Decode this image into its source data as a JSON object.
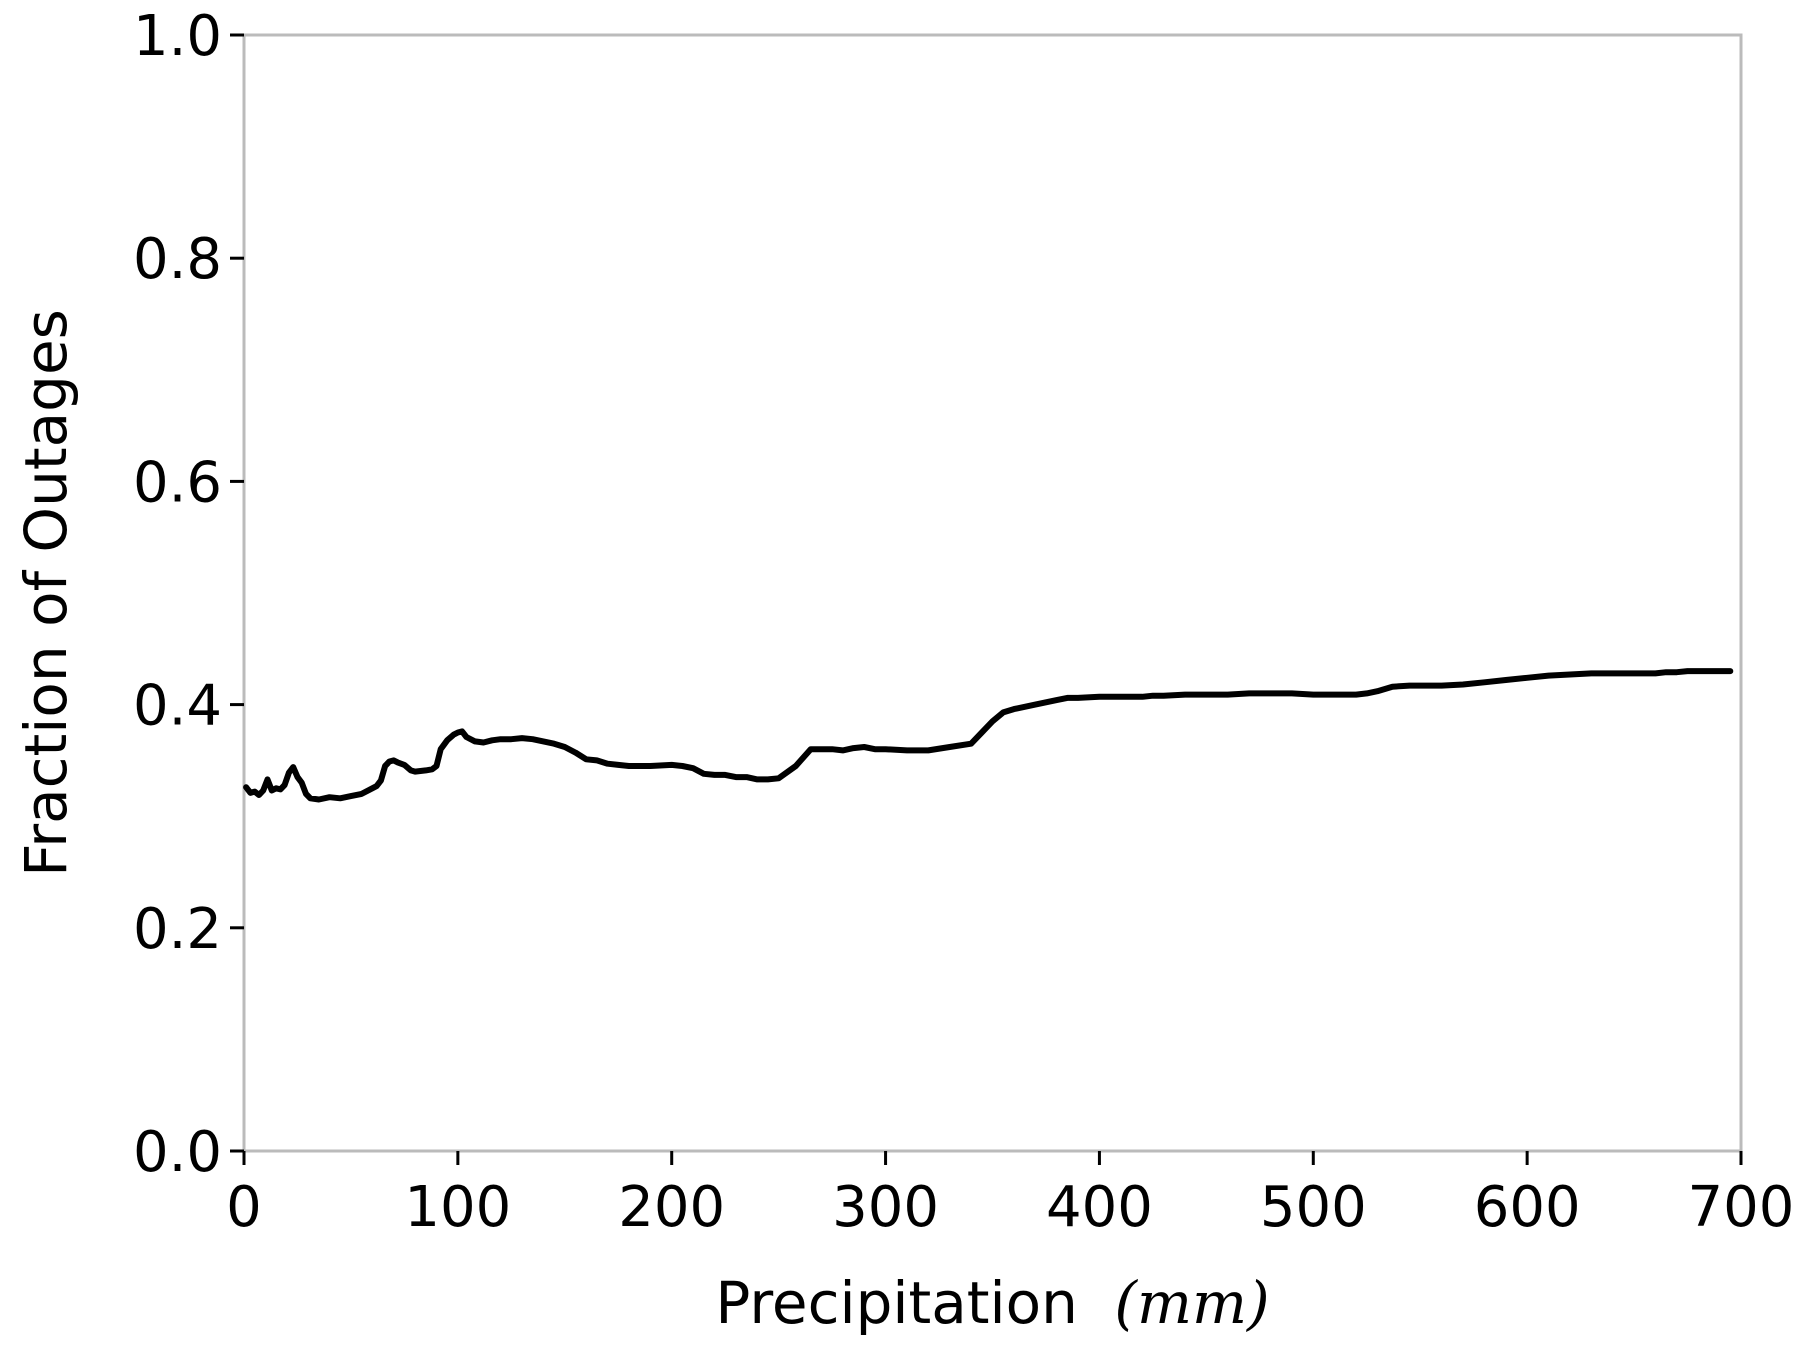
{
  "chart_data": {
    "type": "line",
    "title": "",
    "xlabel": "Precipitation",
    "xlabel_unit": "(mm)",
    "ylabel": "Fraction of Outages",
    "xlim": [
      0,
      700
    ],
    "ylim": [
      0.0,
      1.0
    ],
    "xticks": [
      0,
      100,
      200,
      300,
      400,
      500,
      600,
      700
    ],
    "xtick_labels": [
      "0",
      "100",
      "200",
      "300",
      "400",
      "500",
      "600",
      "700"
    ],
    "yticks": [
      0.0,
      0.2,
      0.4,
      0.6,
      0.8,
      1.0
    ],
    "ytick_labels": [
      "0.0",
      "0.2",
      "0.4",
      "0.6",
      "0.8",
      "1.0"
    ],
    "grid": false,
    "line_color": "#000000",
    "frame_color": "#bbbbbb",
    "series": [
      {
        "x": [
          1,
          3,
          5,
          7,
          9,
          11,
          13,
          15,
          17,
          19,
          21,
          23,
          25,
          27,
          29,
          31,
          35,
          40,
          45,
          50,
          55,
          60,
          62,
          64,
          66,
          68,
          70,
          72,
          75,
          78,
          80,
          85,
          88,
          90,
          92,
          95,
          98,
          100,
          102,
          104,
          108,
          112,
          116,
          120,
          125,
          130,
          135,
          140,
          145,
          150,
          155,
          160,
          165,
          170,
          175,
          180,
          190,
          200,
          205,
          210,
          215,
          220,
          225,
          230,
          235,
          240,
          245,
          250,
          258,
          265,
          270,
          275,
          280,
          285,
          290,
          295,
          300,
          310,
          320,
          330,
          340,
          345,
          350,
          355,
          360,
          370,
          380,
          385,
          390,
          400,
          410,
          420,
          425,
          430,
          440,
          450,
          460,
          470,
          480,
          490,
          500,
          510,
          520,
          525,
          530,
          537,
          545,
          555,
          560,
          570,
          580,
          590,
          600,
          610,
          620,
          630,
          640,
          650,
          660,
          665,
          670,
          675,
          680,
          690,
          695
        ],
        "y": [
          0.326,
          0.321,
          0.322,
          0.319,
          0.323,
          0.333,
          0.323,
          0.325,
          0.324,
          0.328,
          0.339,
          0.344,
          0.335,
          0.33,
          0.32,
          0.316,
          0.315,
          0.317,
          0.316,
          0.318,
          0.32,
          0.325,
          0.327,
          0.332,
          0.345,
          0.349,
          0.35,
          0.348,
          0.346,
          0.341,
          0.34,
          0.341,
          0.342,
          0.345,
          0.36,
          0.368,
          0.373,
          0.375,
          0.376,
          0.371,
          0.367,
          0.366,
          0.368,
          0.369,
          0.369,
          0.37,
          0.369,
          0.367,
          0.365,
          0.362,
          0.357,
          0.351,
          0.35,
          0.347,
          0.346,
          0.345,
          0.345,
          0.346,
          0.345,
          0.343,
          0.338,
          0.337,
          0.337,
          0.335,
          0.335,
          0.333,
          0.333,
          0.334,
          0.345,
          0.36,
          0.36,
          0.36,
          0.359,
          0.361,
          0.362,
          0.36,
          0.36,
          0.359,
          0.359,
          0.362,
          0.365,
          0.375,
          0.385,
          0.393,
          0.396,
          0.4,
          0.404,
          0.406,
          0.406,
          0.407,
          0.407,
          0.407,
          0.408,
          0.408,
          0.409,
          0.409,
          0.409,
          0.41,
          0.41,
          0.41,
          0.409,
          0.409,
          0.409,
          0.41,
          0.412,
          0.416,
          0.417,
          0.417,
          0.417,
          0.418,
          0.42,
          0.422,
          0.424,
          0.426,
          0.427,
          0.428,
          0.428,
          0.428,
          0.428,
          0.429,
          0.429,
          0.43,
          0.43,
          0.43,
          0.43
        ]
      }
    ]
  }
}
